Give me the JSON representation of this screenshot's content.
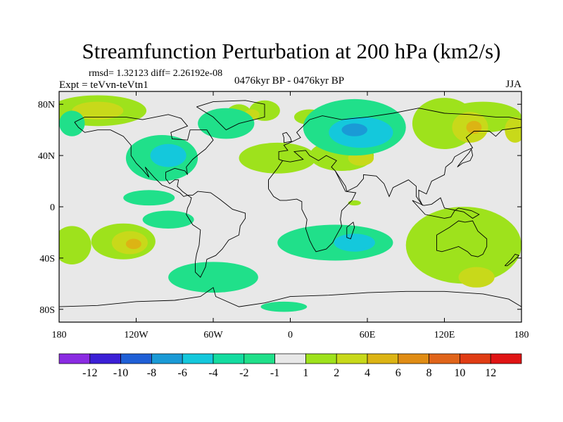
{
  "title": "Streamfunction Perturbation at 200 hPa (km2/s)",
  "stats": "rmsd= 1.32123 diff= 2.26192e-08",
  "experiment": "Expt = teVvn-teVtn1",
  "period": "0476kyr BP - 0476kyr BP",
  "season": "JJA",
  "map": {
    "projection": "cylindrical-equidistant",
    "lon_range": [
      -180,
      180
    ],
    "lat_range": [
      -90,
      90
    ],
    "xticks": [
      {
        "lon": -180,
        "label": "180"
      },
      {
        "lon": -120,
        "label": "120W"
      },
      {
        "lon": -60,
        "label": "60W"
      },
      {
        "lon": 0,
        "label": "0"
      },
      {
        "lon": 60,
        "label": "60E"
      },
      {
        "lon": 120,
        "label": "120E"
      },
      {
        "lon": 180,
        "label": "180"
      }
    ],
    "yticks": [
      {
        "lat": 80,
        "label": "80N"
      },
      {
        "lat": 40,
        "label": "40N"
      },
      {
        "lat": 0,
        "label": "0"
      },
      {
        "lat": -40,
        "label": "40S"
      },
      {
        "lat": -80,
        "label": "80S"
      }
    ],
    "background_color": "#e8e8e8",
    "coastline_color": "#000000"
  },
  "colorbar": {
    "labels": [
      "-12",
      "-10",
      "-8",
      "-6",
      "-4",
      "-2",
      "-1",
      "1",
      "2",
      "4",
      "6",
      "8",
      "10",
      "12"
    ],
    "colors": [
      "#8a2be2",
      "#3b1fd6",
      "#1f5fd6",
      "#1a9ad6",
      "#14c8dc",
      "#14dca0",
      "#20e08a",
      "#e8e8e8",
      "#9ee21c",
      "#c8d91a",
      "#dcb414",
      "#e08c14",
      "#e0641a",
      "#e03c14",
      "#e01414"
    ]
  },
  "regions": [
    {
      "color": "#9ee21c",
      "label": "+1 to +2",
      "blobs": [
        {
          "lon": -150,
          "lat": 75,
          "rx": 38,
          "ry": 12
        },
        {
          "lon": -40,
          "lat": 72,
          "rx": 10,
          "ry": 8
        },
        {
          "lon": -20,
          "lat": 75,
          "rx": 12,
          "ry": 8
        },
        {
          "lon": 15,
          "lat": 70,
          "rx": 12,
          "ry": 6
        },
        {
          "lon": -10,
          "lat": 38,
          "rx": 30,
          "ry": 12
        },
        {
          "lon": 40,
          "lat": 40,
          "rx": 25,
          "ry": 12
        },
        {
          "lon": 120,
          "lat": 65,
          "rx": 25,
          "ry": 20
        },
        {
          "lon": 150,
          "lat": 70,
          "rx": 30,
          "ry": 12
        },
        {
          "lon": -130,
          "lat": -27,
          "rx": 25,
          "ry": 14
        },
        {
          "lon": 135,
          "lat": -30,
          "rx": 45,
          "ry": 30
        },
        {
          "lon": -170,
          "lat": -30,
          "rx": 15,
          "ry": 15
        },
        {
          "lon": 50,
          "lat": 3,
          "rx": 5,
          "ry": 2
        }
      ]
    },
    {
      "color": "#c8d91a",
      "label": "+2 to +4",
      "blobs": [
        {
          "lon": -150,
          "lat": 75,
          "rx": 20,
          "ry": 7
        },
        {
          "lon": -30,
          "lat": 72,
          "rx": 6,
          "ry": 4
        },
        {
          "lon": 140,
          "lat": 62,
          "rx": 14,
          "ry": 12
        },
        {
          "lon": 175,
          "lat": 60,
          "rx": 8,
          "ry": 10
        },
        {
          "lon": 55,
          "lat": 38,
          "rx": 10,
          "ry": 6
        },
        {
          "lon": -125,
          "lat": -28,
          "rx": 14,
          "ry": 9
        },
        {
          "lon": 145,
          "lat": -55,
          "rx": 14,
          "ry": 8
        }
      ]
    },
    {
      "color": "#dcb414",
      "label": "+4 to +6",
      "blobs": [
        {
          "lon": -122,
          "lat": -29,
          "rx": 6,
          "ry": 4
        },
        {
          "lon": 143,
          "lat": 62,
          "rx": 6,
          "ry": 5
        }
      ]
    },
    {
      "color": "#20e08a",
      "label": "-1 to -2",
      "blobs": [
        {
          "lon": -50,
          "lat": 65,
          "rx": 22,
          "ry": 12
        },
        {
          "lon": -100,
          "lat": 38,
          "rx": 28,
          "ry": 18
        },
        {
          "lon": 50,
          "lat": 62,
          "rx": 40,
          "ry": 22
        },
        {
          "lon": -110,
          "lat": 7,
          "rx": 20,
          "ry": 6
        },
        {
          "lon": -95,
          "lat": -10,
          "rx": 20,
          "ry": 7
        },
        {
          "lon": 35,
          "lat": -28,
          "rx": 45,
          "ry": 14
        },
        {
          "lon": -60,
          "lat": -55,
          "rx": 35,
          "ry": 12
        },
        {
          "lon": -5,
          "lat": -78,
          "rx": 18,
          "ry": 4
        },
        {
          "lon": -170,
          "lat": 65,
          "rx": 10,
          "ry": 10
        }
      ]
    },
    {
      "color": "#14c8dc",
      "label": "-2 to -4",
      "blobs": [
        {
          "lon": -95,
          "lat": 40,
          "rx": 14,
          "ry": 9
        },
        {
          "lon": 55,
          "lat": 58,
          "rx": 25,
          "ry": 12
        },
        {
          "lon": 50,
          "lat": -28,
          "rx": 16,
          "ry": 7
        }
      ]
    },
    {
      "color": "#1a9ad6",
      "label": "-4 to -6",
      "blobs": [
        {
          "lon": 50,
          "lat": 60,
          "rx": 10,
          "ry": 5
        }
      ]
    }
  ]
}
